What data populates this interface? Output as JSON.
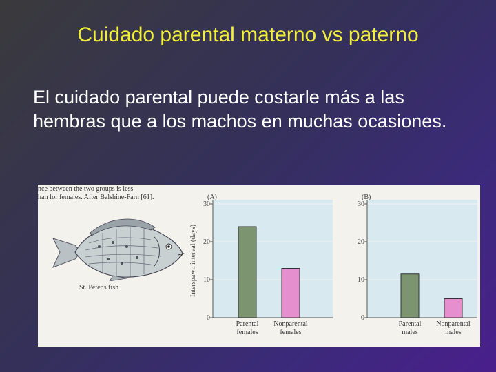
{
  "slide": {
    "title": "Cuidado parental materno vs paterno",
    "body": "El cuidado parental puede costarle más a las hembras que a los machos en muchas ocasiones."
  },
  "figure": {
    "caption_lines": [
      "nce between the two groups is less",
      "han for females. After Balshine-Farn [61]."
    ],
    "fish_label": "St. Peter's fish",
    "colors": {
      "plot_bg": "#d9e9f0",
      "parental_bar": "#7d9470",
      "nonparental_bar": "#e58fcf"
    }
  },
  "chart_data": [
    {
      "type": "bar",
      "panel_label": "(A)",
      "ylabel": "Interspawn interval (days)",
      "ylim": [
        0,
        30
      ],
      "yticks": [
        "0",
        "10",
        "20",
        "30"
      ],
      "categories": [
        "Parental females",
        "Nonparental females"
      ],
      "values": [
        24,
        13
      ]
    },
    {
      "type": "bar",
      "panel_label": "(B)",
      "ylabel": "",
      "ylim": [
        0,
        30
      ],
      "yticks": [
        "0",
        "10",
        "20",
        "30"
      ],
      "categories": [
        "Parental males",
        "Nonparental males"
      ],
      "values": [
        11.5,
        5
      ]
    }
  ]
}
